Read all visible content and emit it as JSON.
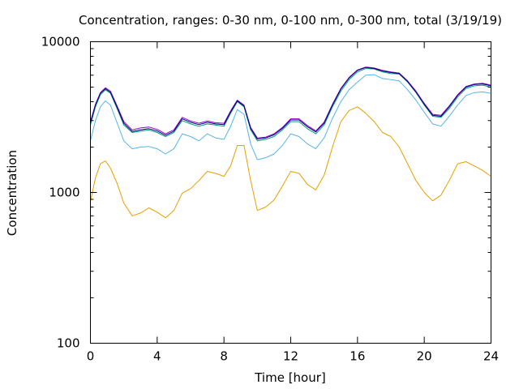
{
  "chart_data": {
    "type": "line",
    "title": "Concentration, ranges: 0-30 nm, 0-100 nm, 0-300 nm, total (3/19/19)",
    "xlabel": "Time [hour]",
    "ylabel": "Concentration",
    "xlim": [
      0,
      24
    ],
    "ylim": [
      100,
      10000
    ],
    "yscale": "log",
    "xticks": [
      0,
      4,
      8,
      12,
      16,
      20,
      24
    ],
    "xtick_labels": [
      "0",
      "4",
      "8",
      "12",
      "16",
      "20",
      "24"
    ],
    "yticks": [
      100,
      1000,
      10000
    ],
    "ytick_labels": [
      "100",
      "1000",
      "10000"
    ],
    "grid": false,
    "series": [
      {
        "color": "#e5a000",
        "x": [
          0,
          0.3,
          0.6,
          0.9,
          1.2,
          1.6,
          2.0,
          2.5,
          3.0,
          3.5,
          4.0,
          4.5,
          5.0,
          5.5,
          6.0,
          6.5,
          7.0,
          7.5,
          8.0,
          8.4,
          8.8,
          9.2,
          9.6,
          10.0,
          10.5,
          11.0,
          11.5,
          12.0,
          12.5,
          13.0,
          13.5,
          14.0,
          14.5,
          15.0,
          15.5,
          16.0,
          16.5,
          17.0,
          17.5,
          18.0,
          18.5,
          19.0,
          19.5,
          20.0,
          20.5,
          21.0,
          21.5,
          22.0,
          22.5,
          23.0,
          23.5,
          24.0
        ],
        "y": [
          870,
          1250,
          1550,
          1620,
          1450,
          1150,
          850,
          700,
          730,
          790,
          740,
          680,
          760,
          990,
          1060,
          1200,
          1380,
          1340,
          1280,
          1500,
          2050,
          2050,
          1200,
          760,
          800,
          890,
          1100,
          1380,
          1340,
          1130,
          1040,
          1300,
          2000,
          2950,
          3500,
          3700,
          3350,
          2950,
          2500,
          2350,
          2000,
          1550,
          1200,
          1000,
          880,
          960,
          1200,
          1550,
          1600,
          1500,
          1400,
          1280
        ]
      },
      {
        "color": "#56b4e9",
        "x": [
          0,
          0.3,
          0.6,
          0.9,
          1.2,
          1.6,
          2.0,
          2.5,
          3.0,
          3.5,
          4.0,
          4.5,
          5.0,
          5.5,
          6.0,
          6.5,
          7.0,
          7.5,
          8.0,
          8.4,
          8.8,
          9.2,
          9.6,
          10.0,
          10.5,
          11.0,
          11.5,
          12.0,
          12.5,
          13.0,
          13.5,
          14.0,
          14.5,
          15.0,
          15.5,
          16.0,
          16.5,
          17.0,
          17.5,
          18.0,
          18.5,
          19.0,
          19.5,
          20.0,
          20.5,
          21.0,
          21.5,
          22.0,
          22.5,
          23.0,
          23.5,
          24.0
        ],
        "y": [
          2200,
          3000,
          3700,
          4050,
          3800,
          2900,
          2200,
          1950,
          2000,
          2020,
          1950,
          1800,
          1950,
          2450,
          2350,
          2200,
          2450,
          2300,
          2250,
          2750,
          3550,
          3300,
          2100,
          1650,
          1700,
          1800,
          2050,
          2450,
          2350,
          2100,
          1950,
          2300,
          3100,
          4000,
          4800,
          5400,
          6000,
          6050,
          5700,
          5600,
          5500,
          4800,
          4100,
          3400,
          2850,
          2750,
          3200,
          3800,
          4400,
          4600,
          4650,
          4550
        ]
      },
      {
        "color": "#009e73",
        "x": [
          0,
          0.3,
          0.6,
          0.9,
          1.2,
          1.6,
          2.0,
          2.5,
          3.0,
          3.5,
          4.0,
          4.5,
          5.0,
          5.5,
          6.0,
          6.5,
          7.0,
          7.5,
          8.0,
          8.4,
          8.8,
          9.2,
          9.6,
          10.0,
          10.5,
          11.0,
          11.5,
          12.0,
          12.5,
          13.0,
          13.5,
          14.0,
          14.5,
          15.0,
          15.5,
          16.0,
          16.5,
          17.0,
          17.5,
          18.0,
          18.5,
          19.0,
          19.5,
          20.0,
          20.5,
          21.0,
          21.5,
          22.0,
          22.5,
          23.0,
          23.5,
          24.0
        ],
        "y": [
          2800,
          3700,
          4450,
          4800,
          4550,
          3600,
          2800,
          2500,
          2550,
          2600,
          2500,
          2350,
          2500,
          3000,
          2850,
          2750,
          2850,
          2800,
          2750,
          3350,
          4000,
          3700,
          2600,
          2200,
          2250,
          2350,
          2600,
          2950,
          2950,
          2650,
          2450,
          2800,
          3700,
          4700,
          5600,
          6300,
          6650,
          6600,
          6300,
          6150,
          6100,
          5400,
          4600,
          3800,
          3200,
          3150,
          3600,
          4300,
          4900,
          5100,
          5150,
          5000
        ]
      },
      {
        "color": "#9400d3",
        "x": [
          0,
          0.3,
          0.6,
          0.9,
          1.2,
          1.6,
          2.0,
          2.5,
          3.0,
          3.5,
          4.0,
          4.5,
          5.0,
          5.5,
          6.0,
          6.5,
          7.0,
          7.5,
          8.0,
          8.4,
          8.8,
          9.2,
          9.6,
          10.0,
          10.5,
          11.0,
          11.5,
          12.0,
          12.5,
          13.0,
          13.5,
          14.0,
          14.5,
          15.0,
          15.5,
          16.0,
          16.5,
          17.0,
          17.5,
          18.0,
          18.5,
          19.0,
          19.5,
          20.0,
          20.5,
          21.0,
          21.5,
          22.0,
          22.5,
          23.0,
          23.5,
          24.0
        ],
        "y": [
          2950,
          3850,
          4600,
          4950,
          4700,
          3750,
          2950,
          2600,
          2680,
          2720,
          2620,
          2450,
          2600,
          3150,
          2980,
          2880,
          2980,
          2900,
          2880,
          3480,
          4100,
          3800,
          2700,
          2300,
          2330,
          2450,
          2700,
          3080,
          3080,
          2780,
          2560,
          2930,
          3850,
          4900,
          5800,
          6500,
          6800,
          6700,
          6450,
          6300,
          6200,
          5500,
          4700,
          3900,
          3300,
          3250,
          3750,
          4450,
          5050,
          5250,
          5300,
          5150
        ]
      },
      {
        "color": "#000080",
        "x": [
          0,
          0.3,
          0.6,
          0.9,
          1.2,
          1.6,
          2.0,
          2.5,
          3.0,
          3.5,
          4.0,
          4.5,
          5.0,
          5.5,
          6.0,
          6.5,
          7.0,
          7.5,
          8.0,
          8.4,
          8.8,
          9.2,
          9.6,
          10.0,
          10.5,
          11.0,
          11.5,
          12.0,
          12.5,
          13.0,
          13.5,
          14.0,
          14.5,
          15.0,
          15.5,
          16.0,
          16.5,
          17.0,
          17.5,
          18.0,
          18.5,
          19.0,
          19.5,
          20.0,
          20.5,
          21.0,
          21.5,
          22.0,
          22.5,
          23.0,
          23.5,
          24.0
        ],
        "y": [
          2900,
          3800,
          4550,
          4880,
          4620,
          3680,
          2880,
          2540,
          2600,
          2650,
          2560,
          2400,
          2550,
          3080,
          2920,
          2820,
          2920,
          2850,
          2820,
          3420,
          4050,
          3750,
          2660,
          2260,
          2300,
          2410,
          2660,
          3030,
          3030,
          2730,
          2520,
          2880,
          3800,
          4850,
          5750,
          6450,
          6750,
          6650,
          6400,
          6250,
          6150,
          5450,
          4650,
          3850,
          3250,
          3200,
          3700,
          4400,
          5000,
          5200,
          5250,
          5100
        ]
      }
    ]
  }
}
